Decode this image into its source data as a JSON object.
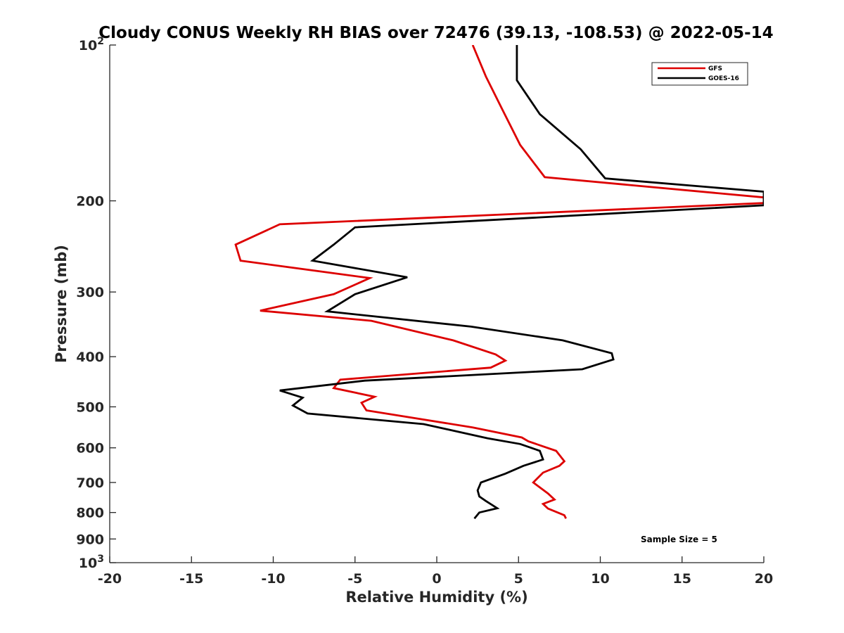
{
  "chart_data": {
    "type": "line",
    "title": "Cloudy CONUS Weekly RH BIAS over 72476 (39.13, -108.53) @ 2022-05-14",
    "xlabel": "Relative Humidity (%)",
    "ylabel": "Pressure (mb)",
    "xlim": [
      -20,
      20
    ],
    "ylim": [
      100,
      1000
    ],
    "y_scale": "log",
    "y_reversed": true,
    "x_ticks": [
      -20,
      -15,
      -10,
      -5,
      0,
      5,
      10,
      15,
      20
    ],
    "x_tick_labels": [
      "-20",
      "-15",
      "-10",
      "-5",
      "0",
      "5",
      "10",
      "15",
      "20"
    ],
    "y_ticks": [
      200,
      300,
      400,
      500,
      600,
      700,
      800,
      900
    ],
    "y_tick_labels": [
      "200",
      "300",
      "400",
      "500",
      "600",
      "700",
      "800",
      "900"
    ],
    "y_power_ticks": [
      {
        "value": 100,
        "base": "10",
        "exp": "2"
      },
      {
        "value": 1000,
        "base": "10",
        "exp": "3"
      }
    ],
    "grid": false,
    "legend_position": "top-right",
    "annotation": "Sample Size = 5",
    "series": [
      {
        "name": "GFS",
        "color": "#dd0000",
        "points": [
          [
            2.2,
            100
          ],
          [
            3.0,
            115
          ],
          [
            4.0,
            133
          ],
          [
            5.1,
            156
          ],
          [
            6.6,
            180
          ],
          [
            20.0,
            197
          ],
          [
            20.0,
            202
          ],
          [
            -9.6,
            222
          ],
          [
            -12.3,
            243
          ],
          [
            -12.0,
            261
          ],
          [
            -4.1,
            282
          ],
          [
            -6.3,
            303
          ],
          [
            -10.8,
            326
          ],
          [
            -4.0,
            341
          ],
          [
            1.0,
            372
          ],
          [
            3.6,
            396
          ],
          [
            4.2,
            407
          ],
          [
            3.3,
            420
          ],
          [
            -5.9,
            443
          ],
          [
            -6.3,
            460
          ],
          [
            -3.8,
            478
          ],
          [
            -4.6,
            491
          ],
          [
            -4.3,
            508
          ],
          [
            2.2,
            548
          ],
          [
            5.2,
            573
          ],
          [
            5.6,
            583
          ],
          [
            7.3,
            608
          ],
          [
            7.8,
            637
          ],
          [
            7.5,
            650
          ],
          [
            6.5,
            670
          ],
          [
            5.9,
            700
          ],
          [
            6.8,
            735
          ],
          [
            7.2,
            755
          ],
          [
            6.5,
            770
          ],
          [
            6.8,
            786
          ],
          [
            7.8,
            810
          ],
          [
            7.9,
            822
          ]
        ]
      },
      {
        "name": "GOES-16",
        "color": "#000000",
        "points": [
          [
            4.9,
            100
          ],
          [
            4.9,
            117
          ],
          [
            6.3,
            136
          ],
          [
            8.8,
            159
          ],
          [
            10.3,
            181
          ],
          [
            20.0,
            192
          ],
          [
            20.0,
            204
          ],
          [
            -5.0,
            225
          ],
          [
            -6.3,
            243
          ],
          [
            -7.6,
            261
          ],
          [
            -1.8,
            281
          ],
          [
            -5.0,
            303
          ],
          [
            -6.7,
            327
          ],
          [
            2.1,
            350
          ],
          [
            7.7,
            372
          ],
          [
            10.7,
            394
          ],
          [
            10.8,
            405
          ],
          [
            8.9,
            423
          ],
          [
            -4.4,
            445
          ],
          [
            -9.6,
            465
          ],
          [
            -8.2,
            480
          ],
          [
            -8.8,
            497
          ],
          [
            -7.9,
            515
          ],
          [
            -0.8,
            540
          ],
          [
            3.1,
            575
          ],
          [
            5.1,
            590
          ],
          [
            6.3,
            608
          ],
          [
            6.5,
            632
          ],
          [
            5.3,
            650
          ],
          [
            4.2,
            673
          ],
          [
            2.7,
            700
          ],
          [
            2.5,
            725
          ],
          [
            2.6,
            745
          ],
          [
            3.0,
            760
          ],
          [
            3.7,
            785
          ],
          [
            2.6,
            800
          ],
          [
            2.3,
            822
          ]
        ]
      }
    ]
  }
}
